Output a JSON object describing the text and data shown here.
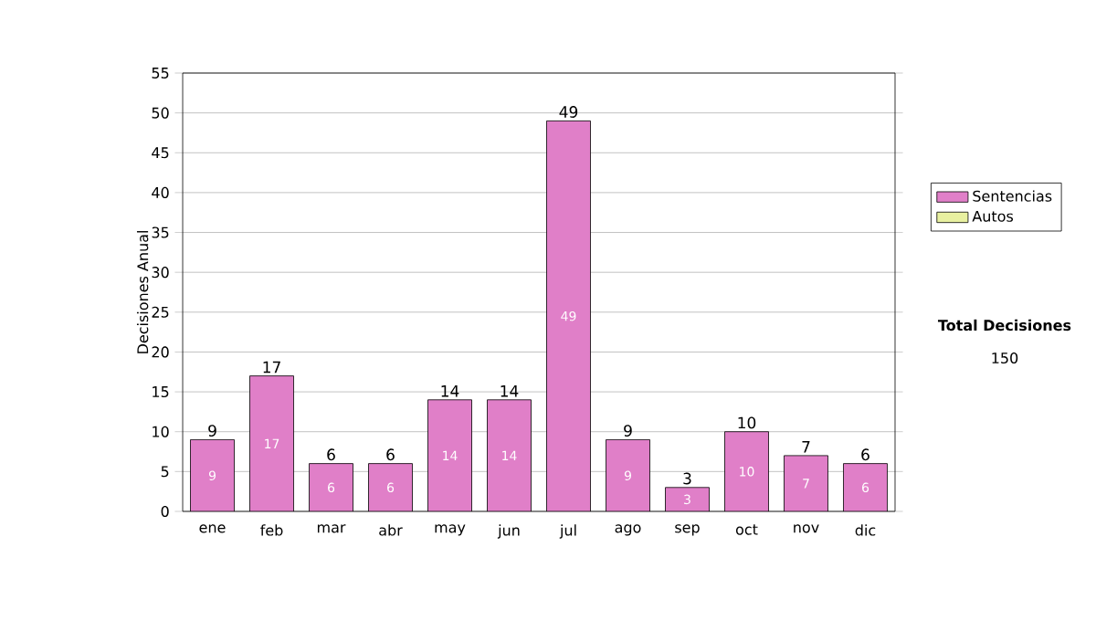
{
  "chart_data": {
    "type": "bar",
    "stacked": true,
    "ylabel": "Decisiones Anual",
    "categories": [
      "ene",
      "feb",
      "mar",
      "abr",
      "may",
      "jun",
      "jul",
      "ago",
      "sep",
      "oct",
      "nov",
      "dic"
    ],
    "series": [
      {
        "name": "Sentencias",
        "color": "#e07fc8",
        "values": [
          9,
          17,
          6,
          6,
          14,
          14,
          49,
          9,
          3,
          10,
          7,
          6
        ],
        "value_labels": [
          "9",
          "17",
          "6",
          "6",
          "14",
          "14",
          "49",
          "9",
          "3",
          "10",
          "7",
          "6"
        ]
      },
      {
        "name": "Autos",
        "color": "#e8f0a0",
        "values": [
          0,
          0,
          0,
          0,
          0,
          0,
          0,
          0,
          0,
          0,
          0,
          0
        ]
      }
    ],
    "totals": [
      "9",
      "17",
      "6",
      "6",
      "14",
      "14",
      "49",
      "9",
      "3",
      "10",
      "7",
      "6"
    ],
    "ylim": [
      0,
      55
    ],
    "yticks": [
      0,
      5,
      10,
      15,
      20,
      25,
      30,
      35,
      40,
      45,
      50,
      55
    ],
    "grid": "y",
    "legend": "right",
    "annotations": [
      "Total Decisiones",
      "150"
    ]
  }
}
